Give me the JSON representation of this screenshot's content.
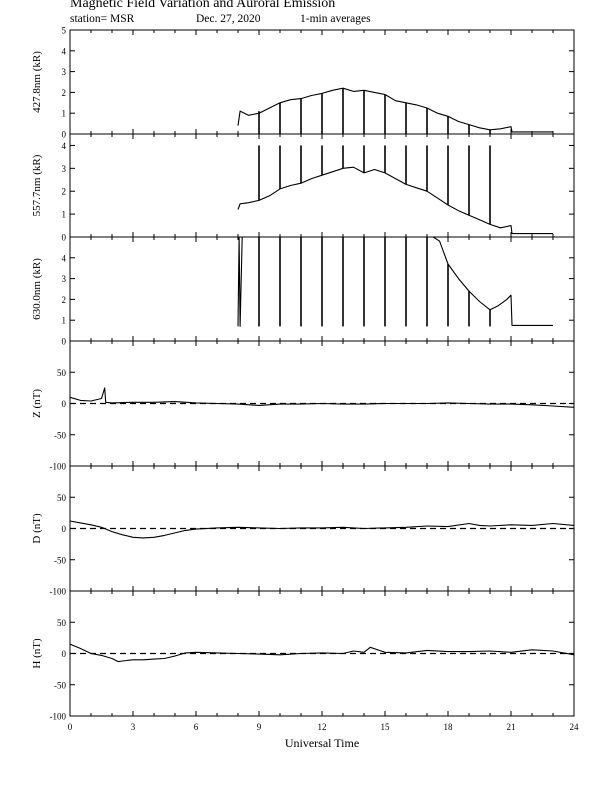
{
  "header": {
    "title": "Magnetic Field Variation and Auroral Emission",
    "station": "station= MSR",
    "date": "Dec. 27, 2020",
    "averaging": "1-min averages"
  },
  "chart_data": [
    {
      "type": "line",
      "name": "427.8nm",
      "ylabel": "427.8nm (kR)",
      "ylim": [
        0,
        5
      ],
      "yticks": [
        0,
        1,
        2,
        3,
        4,
        5
      ],
      "xlim": [
        0,
        24
      ],
      "data_start_hour": 8.0,
      "data_end_hour": 23.0,
      "series": [
        {
          "x": [
            8.0,
            8.1,
            8.5,
            9,
            9.5,
            10,
            10.5,
            11,
            11.5,
            12,
            12.5,
            13,
            13.5,
            14,
            14.5,
            15,
            15.5,
            16,
            16.5,
            17,
            17.5,
            18,
            18.5,
            19,
            19.5,
            20,
            20.5,
            21,
            21.05,
            22,
            23
          ],
          "y": [
            0.4,
            1.1,
            0.9,
            1.0,
            1.25,
            1.5,
            1.65,
            1.7,
            1.85,
            1.95,
            2.1,
            2.2,
            2.05,
            2.1,
            2.0,
            1.9,
            1.6,
            1.5,
            1.4,
            1.25,
            1.0,
            0.85,
            0.6,
            0.45,
            0.3,
            0.2,
            0.25,
            0.35,
            0.1,
            0.1,
            0.1
          ]
        }
      ],
      "spikes": [
        {
          "x": 9.0,
          "low": 0.0,
          "high": 1.1
        },
        {
          "x": 10.0,
          "low": 0.0,
          "high": 1.5
        },
        {
          "x": 11.0,
          "low": 0.0,
          "high": 1.7
        },
        {
          "x": 12.0,
          "low": 0.0,
          "high": 1.95
        },
        {
          "x": 13.0,
          "low": 0.0,
          "high": 2.2
        },
        {
          "x": 14.0,
          "low": 0.0,
          "high": 2.1
        },
        {
          "x": 15.0,
          "low": 0.0,
          "high": 1.9
        },
        {
          "x": 16.0,
          "low": 0.0,
          "high": 1.5
        },
        {
          "x": 17.0,
          "low": 0.0,
          "high": 1.25
        },
        {
          "x": 18.0,
          "low": 0.0,
          "high": 0.85
        },
        {
          "x": 19.0,
          "low": 0.0,
          "high": 0.45
        },
        {
          "x": 20.0,
          "low": 0.0,
          "high": 0.2
        }
      ]
    },
    {
      "type": "line",
      "name": "557.7nm",
      "ylabel": "557.7nm (kR)",
      "ylim": [
        0,
        4.5
      ],
      "yticks": [
        0,
        1,
        2,
        3,
        4
      ],
      "xlim": [
        0,
        24
      ],
      "series": [
        {
          "x": [
            8.0,
            8.1,
            8.5,
            9,
            9.5,
            10,
            10.5,
            11,
            11.5,
            12,
            12.5,
            13,
            13.5,
            14,
            14.5,
            15,
            15.5,
            16,
            16.5,
            17,
            17.5,
            18,
            18.5,
            19,
            19.5,
            20,
            20.5,
            21,
            21.05,
            22,
            23
          ],
          "y": [
            1.2,
            1.45,
            1.5,
            1.6,
            1.8,
            2.1,
            2.25,
            2.35,
            2.55,
            2.7,
            2.85,
            3.0,
            3.05,
            2.8,
            2.95,
            2.8,
            2.55,
            2.3,
            2.15,
            2.0,
            1.7,
            1.4,
            1.15,
            0.95,
            0.75,
            0.55,
            0.4,
            0.5,
            0.15,
            0.15,
            0.15
          ]
        }
      ],
      "spikes": [
        {
          "x": 9.0,
          "low": 1.6,
          "high": 4.0
        },
        {
          "x": 10.0,
          "low": 2.1,
          "high": 4.0
        },
        {
          "x": 11.0,
          "low": 2.35,
          "high": 4.0
        },
        {
          "x": 12.0,
          "low": 2.7,
          "high": 4.0
        },
        {
          "x": 13.0,
          "low": 3.0,
          "high": 4.0
        },
        {
          "x": 14.0,
          "low": 2.8,
          "high": 4.0
        },
        {
          "x": 15.0,
          "low": 2.8,
          "high": 4.0
        },
        {
          "x": 16.0,
          "low": 2.3,
          "high": 4.0
        },
        {
          "x": 17.0,
          "low": 2.0,
          "high": 4.0
        },
        {
          "x": 18.0,
          "low": 1.4,
          "high": 4.0
        },
        {
          "x": 19.0,
          "low": 0.95,
          "high": 4.0
        },
        {
          "x": 20.0,
          "low": 0.55,
          "high": 4.0
        }
      ]
    },
    {
      "type": "line",
      "name": "630.0nm",
      "ylabel": "630.0nm (kR)",
      "ylim": [
        0,
        5
      ],
      "yticks": [
        0,
        1,
        2,
        3,
        4
      ],
      "xlim": [
        0,
        24
      ],
      "series": [
        {
          "x": [
            8.0,
            8.05,
            8.1,
            8.2,
            17.3,
            17.6,
            18,
            18.5,
            19,
            19.5,
            20,
            20.4,
            20.8,
            21,
            21.05,
            22,
            23
          ],
          "y": [
            0.7,
            5.2,
            0.7,
            5.2,
            5.2,
            4.8,
            3.7,
            3.0,
            2.4,
            1.9,
            1.5,
            1.7,
            2.0,
            2.2,
            0.75,
            0.75,
            0.75
          ]
        }
      ],
      "spikes": [
        {
          "x": 9.0,
          "low": 0.7,
          "high": 5.0
        },
        {
          "x": 10.0,
          "low": 0.7,
          "high": 5.0
        },
        {
          "x": 11.0,
          "low": 0.7,
          "high": 5.0
        },
        {
          "x": 12.0,
          "low": 0.7,
          "high": 5.0
        },
        {
          "x": 13.0,
          "low": 0.7,
          "high": 5.0
        },
        {
          "x": 14.0,
          "low": 0.7,
          "high": 5.0
        },
        {
          "x": 15.0,
          "low": 0.7,
          "high": 5.0
        },
        {
          "x": 16.0,
          "low": 0.7,
          "high": 5.0
        },
        {
          "x": 17.0,
          "low": 0.7,
          "high": 5.0
        },
        {
          "x": 18.0,
          "low": 0.7,
          "high": 3.7
        },
        {
          "x": 19.0,
          "low": 0.7,
          "high": 2.4
        },
        {
          "x": 20.0,
          "low": 0.7,
          "high": 1.5
        }
      ]
    },
    {
      "type": "line",
      "name": "Z",
      "ylabel": "Z (nT)",
      "ylim": [
        -100,
        100
      ],
      "yticks": [
        -100,
        -50,
        0,
        50
      ],
      "xlim": [
        0,
        24
      ],
      "baseline": 0,
      "series": [
        {
          "x": [
            0,
            0.5,
            1,
            1.5,
            1.65,
            1.7,
            2,
            3,
            4,
            5,
            6,
            7,
            8,
            9,
            10,
            11,
            12,
            13,
            14,
            15,
            16,
            17,
            18,
            19,
            20,
            21,
            22,
            23,
            24
          ],
          "y": [
            10,
            5,
            4,
            8,
            25,
            2,
            1,
            2,
            2,
            3,
            1,
            0,
            -1,
            -3,
            -1,
            -1,
            0,
            -1,
            -1,
            0,
            0,
            0,
            1,
            0,
            -1,
            -1,
            -2,
            -4,
            -6
          ]
        }
      ]
    },
    {
      "type": "line",
      "name": "D",
      "ylabel": "D (nT)",
      "ylim": [
        -100,
        100
      ],
      "yticks": [
        -100,
        -50,
        0,
        50
      ],
      "xlim": [
        0,
        24
      ],
      "baseline": 0,
      "series": [
        {
          "x": [
            0,
            0.5,
            1,
            1.5,
            2,
            2.5,
            3,
            3.5,
            4,
            4.5,
            5,
            5.5,
            6,
            7,
            8,
            9,
            10,
            11,
            12,
            13,
            14,
            15,
            16,
            17,
            18,
            19,
            19.5,
            20,
            21,
            22,
            23,
            24
          ],
          "y": [
            12,
            9,
            6,
            2,
            -5,
            -10,
            -14,
            -15,
            -14,
            -11,
            -7,
            -3,
            -1,
            1,
            2,
            1,
            0,
            1,
            1,
            2,
            0,
            1,
            2,
            4,
            3,
            8,
            5,
            4,
            6,
            5,
            8,
            5
          ]
        }
      ]
    },
    {
      "type": "line",
      "name": "H",
      "ylabel": "H (nT)",
      "ylim": [
        -100,
        100
      ],
      "yticks": [
        -100,
        -50,
        0,
        50
      ],
      "xlim": [
        0,
        24
      ],
      "xlabel": "Universal Time",
      "xticks": [
        0,
        3,
        6,
        9,
        12,
        15,
        18,
        21,
        24
      ],
      "baseline": 0,
      "series": [
        {
          "x": [
            0,
            0.5,
            1,
            1.5,
            2,
            2.3,
            2.5,
            3,
            3.5,
            4,
            4.5,
            5,
            5.5,
            6,
            7,
            8,
            9,
            10,
            11,
            12,
            13,
            13.5,
            14,
            14.3,
            15,
            16,
            17,
            18,
            19,
            20,
            21,
            22,
            23,
            24
          ],
          "y": [
            15,
            8,
            0,
            -3,
            -8,
            -13,
            -12,
            -10,
            -10,
            -9,
            -8,
            -4,
            1,
            2,
            1,
            0,
            -1,
            -2,
            0,
            1,
            0,
            4,
            2,
            10,
            2,
            1,
            5,
            3,
            3,
            4,
            2,
            6,
            4,
            -2
          ]
        }
      ]
    }
  ]
}
